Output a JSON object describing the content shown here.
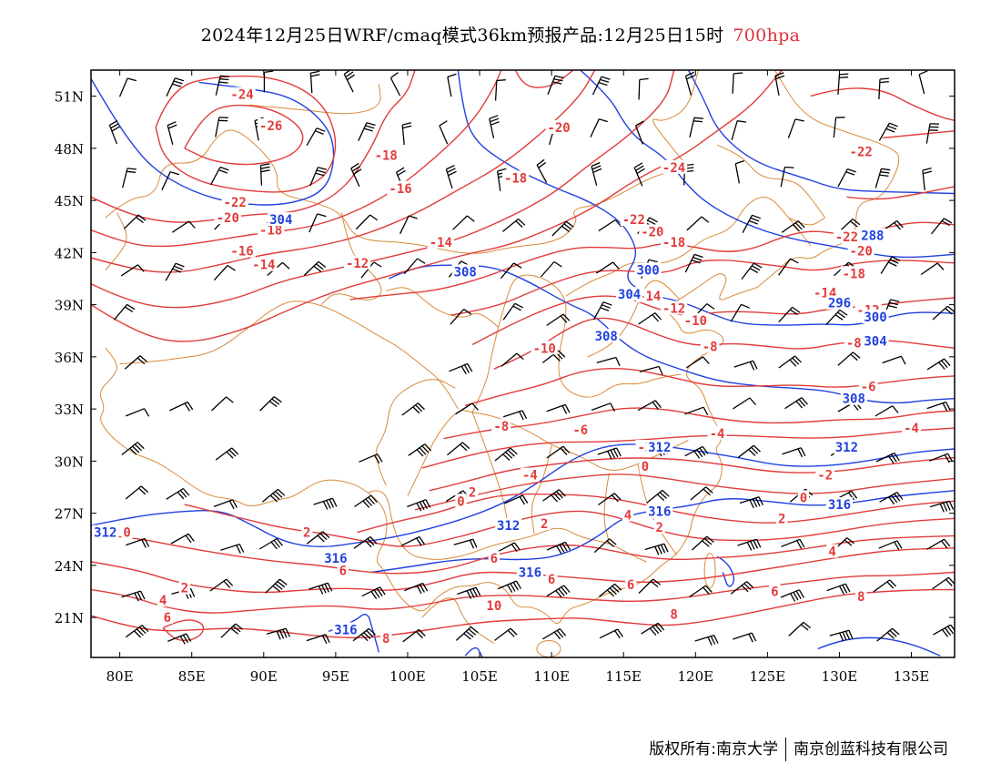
{
  "title": {
    "main": "2024年12月25日WRF/cmaq模式36km预报产品:12月25日15时",
    "level": "700hpa",
    "level_color": "#e0303a"
  },
  "axes": {
    "lat_labels": [
      "51N",
      "48N",
      "45N",
      "42N",
      "39N",
      "36N",
      "33N",
      "30N",
      "27N",
      "24N",
      "21N"
    ],
    "lat_values": [
      51,
      48,
      45,
      42,
      39,
      36,
      33,
      30,
      27,
      24,
      21
    ],
    "lon_labels": [
      "80E",
      "85E",
      "90E",
      "95E",
      "100E",
      "105E",
      "110E",
      "115E",
      "120E",
      "125E",
      "130E",
      "135E"
    ],
    "lon_values": [
      80,
      85,
      90,
      95,
      100,
      105,
      110,
      115,
      120,
      125,
      130,
      135
    ],
    "lon_range": [
      78,
      138
    ],
    "lat_range": [
      18.7,
      52.5
    ]
  },
  "colors": {
    "temperature": "#e23b3b",
    "height": "#2040e0",
    "border": "#d98a3a",
    "wind": "#000000"
  },
  "temperature_labels": [
    {
      "text": "-24",
      "lon": 88.5,
      "lat": 51.1
    },
    {
      "text": "-26",
      "lon": 90.5,
      "lat": 49.3
    },
    {
      "text": "-22",
      "lon": 88,
      "lat": 44.9
    },
    {
      "text": "-20",
      "lon": 87.5,
      "lat": 44.0
    },
    {
      "text": "-18",
      "lon": 90.5,
      "lat": 43.3
    },
    {
      "text": "-16",
      "lon": 88.5,
      "lat": 42.1
    },
    {
      "text": "-14",
      "lon": 90,
      "lat": 41.3
    },
    {
      "text": "-12",
      "lon": 96.5,
      "lat": 41.4
    },
    {
      "text": "-18",
      "lon": 98.5,
      "lat": 47.6
    },
    {
      "text": "-16",
      "lon": 99.5,
      "lat": 45.7
    },
    {
      "text": "-20",
      "lon": 110.5,
      "lat": 49.2
    },
    {
      "text": "-18",
      "lon": 107.5,
      "lat": 46.3
    },
    {
      "text": "-14",
      "lon": 102.3,
      "lat": 42.6
    },
    {
      "text": "-24",
      "lon": 118.5,
      "lat": 46.9
    },
    {
      "text": "-22",
      "lon": 115.7,
      "lat": 43.9
    },
    {
      "text": "-20",
      "lon": 117,
      "lat": 43.2
    },
    {
      "text": "-18",
      "lon": 118.5,
      "lat": 42.6
    },
    {
      "text": "-14",
      "lon": 116.8,
      "lat": 39.5
    },
    {
      "text": "-12",
      "lon": 118.5,
      "lat": 38.8
    },
    {
      "text": "-10",
      "lon": 120,
      "lat": 38.1
    },
    {
      "text": "-8",
      "lon": 121,
      "lat": 36.6
    },
    {
      "text": "-10",
      "lon": 109.5,
      "lat": 36.5
    },
    {
      "text": "-22",
      "lon": 131.5,
      "lat": 47.8
    },
    {
      "text": "-22",
      "lon": 130.5,
      "lat": 42.9
    },
    {
      "text": "-20",
      "lon": 131.5,
      "lat": 42.1
    },
    {
      "text": "-18",
      "lon": 131,
      "lat": 40.8
    },
    {
      "text": "-14",
      "lon": 129,
      "lat": 39.7
    },
    {
      "text": "-12",
      "lon": 132,
      "lat": 38.7
    },
    {
      "text": "-8",
      "lon": 131,
      "lat": 36.8
    },
    {
      "text": "-6",
      "lon": 132,
      "lat": 34.3
    },
    {
      "text": "-4",
      "lon": 135,
      "lat": 31.9
    },
    {
      "text": "-4",
      "lon": 121.5,
      "lat": 31.6
    },
    {
      "text": "-8",
      "lon": 106.5,
      "lat": 32.0
    },
    {
      "text": "-6",
      "lon": 112,
      "lat": 31.8
    },
    {
      "text": "-2",
      "lon": 116.5,
      "lat": 30.8
    },
    {
      "text": "0",
      "lon": 116.5,
      "lat": 29.7
    },
    {
      "text": "-4",
      "lon": 108.5,
      "lat": 29.2
    },
    {
      "text": "-2",
      "lon": 129,
      "lat": 29.2
    },
    {
      "text": "0",
      "lon": 127.5,
      "lat": 27.9
    },
    {
      "text": "2",
      "lon": 104.5,
      "lat": 28.2
    },
    {
      "text": "0",
      "lon": 103.7,
      "lat": 27.7
    },
    {
      "text": "2",
      "lon": 109.5,
      "lat": 26.4
    },
    {
      "text": "2",
      "lon": 117.5,
      "lat": 26.2
    },
    {
      "text": "4",
      "lon": 115.3,
      "lat": 26.9
    },
    {
      "text": "2",
      "lon": 126,
      "lat": 26.7
    },
    {
      "text": "2",
      "lon": 93,
      "lat": 25.9
    },
    {
      "text": "0",
      "lon": 80.5,
      "lat": 25.9
    },
    {
      "text": "6",
      "lon": 95.5,
      "lat": 23.7
    },
    {
      "text": "6",
      "lon": 106,
      "lat": 24.4
    },
    {
      "text": "6",
      "lon": 110,
      "lat": 23.2
    },
    {
      "text": "4",
      "lon": 129.5,
      "lat": 24.8
    },
    {
      "text": "6",
      "lon": 125.5,
      "lat": 22.5
    },
    {
      "text": "8",
      "lon": 131.5,
      "lat": 22.2
    },
    {
      "text": "4",
      "lon": 83,
      "lat": 22.0
    },
    {
      "text": "2",
      "lon": 84.5,
      "lat": 22.7
    },
    {
      "text": "6",
      "lon": 83.3,
      "lat": 21.0
    },
    {
      "text": "6",
      "lon": 115.5,
      "lat": 22.9
    },
    {
      "text": "8",
      "lon": 118.5,
      "lat": 21.2
    },
    {
      "text": "10",
      "lon": 106,
      "lat": 21.7
    },
    {
      "text": "8",
      "lon": 98.5,
      "lat": 19.8
    }
  ],
  "height_labels": [
    {
      "text": "304",
      "lon": 91.2,
      "lat": 43.9
    },
    {
      "text": "308",
      "lon": 104,
      "lat": 40.9
    },
    {
      "text": "300",
      "lon": 116.7,
      "lat": 41.0
    },
    {
      "text": "304",
      "lon": 115.4,
      "lat": 39.6
    },
    {
      "text": "308",
      "lon": 113.8,
      "lat": 37.2
    },
    {
      "text": "312",
      "lon": 117.5,
      "lat": 30.8
    },
    {
      "text": "312",
      "lon": 130.5,
      "lat": 30.8
    },
    {
      "text": "312",
      "lon": 107,
      "lat": 26.3
    },
    {
      "text": "316",
      "lon": 117.5,
      "lat": 27.1
    },
    {
      "text": "316",
      "lon": 130,
      "lat": 27.5
    },
    {
      "text": "316",
      "lon": 95,
      "lat": 24.4
    },
    {
      "text": "316",
      "lon": 108.5,
      "lat": 23.6
    },
    {
      "text": "312",
      "lon": 79,
      "lat": 25.9
    },
    {
      "text": "316",
      "lon": 95.7,
      "lat": 20.3
    },
    {
      "text": "288",
      "lon": 132.3,
      "lat": 43.0
    },
    {
      "text": "296",
      "lon": 130,
      "lat": 39.1
    },
    {
      "text": "300",
      "lon": 132.5,
      "lat": 38.3
    },
    {
      "text": "304",
      "lon": 132.5,
      "lat": 36.9
    },
    {
      "text": "308",
      "lon": 131,
      "lat": 33.6
    }
  ],
  "footer": {
    "left": "版权所有:南京大学",
    "right": "南京创蓝科技有限公司"
  }
}
